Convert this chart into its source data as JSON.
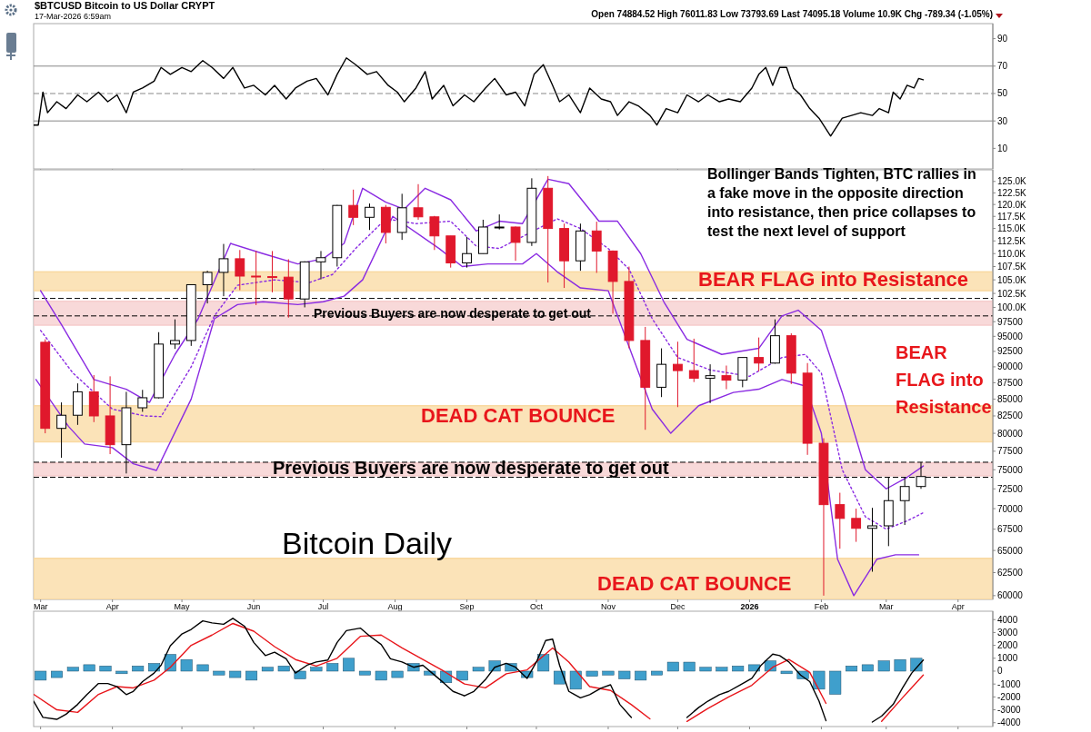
{
  "chart_data": [
    {
      "type": "line",
      "title": "$BTCUSD Bitcoin to US Dollar CRYPT",
      "subtitle": "17-Mar-2026 6:59am",
      "annotations": [
        "Open 74884.52 High 76011.83 Low 73793.69 Last 74095.18 Volume 10.9K Chg -789.34 (-1.05%)"
      ],
      "xlim": [
        "2025-02-26",
        "2026-04-16"
      ],
      "ylim": [
        -5,
        101
      ],
      "yticks": [
        10,
        30,
        50,
        70,
        90
      ],
      "tick_labels": "y",
      "xticks": [
        {
          "value": "2025-03-01",
          "label": null
        },
        {
          "value": "2025-04-01",
          "label": null
        },
        {
          "value": "2025-05-01",
          "label": null
        },
        {
          "value": "2025-06-01",
          "label": null
        },
        {
          "value": "2025-07-01",
          "label": null
        },
        {
          "value": "2025-08-01",
          "label": null
        },
        {
          "value": "2025-09-01",
          "label": null
        },
        {
          "value": "2025-10-01",
          "label": null
        },
        {
          "value": "2025-11-01",
          "label": null
        },
        {
          "value": "2025-12-01",
          "label": null
        },
        {
          "value": "2026-01-01",
          "label": null
        },
        {
          "value": "2026-02-01",
          "label": null
        },
        {
          "value": "2026-03-01",
          "label": null
        },
        {
          "value": "2026-04-01",
          "label": null
        }
      ],
      "ref_lines": [
        {
          "axis": "y",
          "value": 70,
          "color": "#888888"
        },
        {
          "axis": "y",
          "value": 50,
          "color": "#888888",
          "line_style": "dashed"
        },
        {
          "axis": "y",
          "value": 30,
          "color": "#888888"
        }
      ],
      "series": [
        {
          "color": "#000000",
          "x": [
            "2025-02-26",
            "2025-02-28",
            "2025-03-02",
            "2025-03-04",
            "2025-03-08",
            "2025-03-12",
            "2025-03-17",
            "2025-03-21",
            "2025-03-26",
            "2025-03-30",
            "2025-04-03",
            "2025-04-07",
            "2025-04-10",
            "2025-04-14",
            "2025-04-19",
            "2025-04-22",
            "2025-04-26",
            "2025-05-01",
            "2025-05-05",
            "2025-05-10",
            "2025-05-14",
            "2025-05-19",
            "2025-05-23",
            "2025-05-28",
            "2025-06-01",
            "2025-06-06",
            "2025-06-10",
            "2025-06-15",
            "2025-06-19",
            "2025-06-24",
            "2025-06-28",
            "2025-07-03",
            "2025-07-07",
            "2025-07-11",
            "2025-07-15",
            "2025-07-20",
            "2025-07-24",
            "2025-07-29",
            "2025-08-02",
            "2025-08-05",
            "2025-08-10",
            "2025-08-14",
            "2025-08-17",
            "2025-08-22",
            "2025-08-26",
            "2025-08-31",
            "2025-09-04",
            "2025-09-09",
            "2025-09-13",
            "2025-09-18",
            "2025-09-22",
            "2025-09-26",
            "2025-09-30",
            "2025-10-04",
            "2025-10-08",
            "2025-10-11",
            "2025-10-15",
            "2025-10-20",
            "2025-10-24",
            "2025-10-29",
            "2025-11-02",
            "2025-11-05",
            "2025-11-10",
            "2025-11-14",
            "2025-11-19",
            "2025-11-22",
            "2025-11-26",
            "2025-12-01",
            "2025-12-05",
            "2025-12-10",
            "2025-12-14",
            "2025-12-19",
            "2025-12-23",
            "2025-12-28",
            "2026-01-02",
            "2026-01-05",
            "2026-01-08",
            "2026-01-11",
            "2026-01-14",
            "2026-01-17",
            "2026-01-20",
            "2026-01-23",
            "2026-01-27",
            "2026-01-31",
            "2026-02-05",
            "2026-02-10",
            "2026-02-14",
            "2026-02-18",
            "2026-02-23",
            "2026-02-26",
            "2026-03-02",
            "2026-03-04",
            "2026-03-07",
            "2026-03-10",
            "2026-03-13",
            "2026-03-15",
            "2026-03-17"
          ],
          "values": [
            27,
            27,
            51,
            36,
            44,
            39,
            49,
            44,
            51,
            44,
            49,
            36,
            51,
            54,
            59,
            69,
            64,
            69,
            66,
            74,
            69,
            61,
            69,
            54,
            56,
            49,
            56,
            46,
            54,
            59,
            61,
            49,
            64,
            76,
            71,
            64,
            66,
            56,
            51,
            44,
            54,
            66,
            46,
            56,
            41,
            49,
            44,
            54,
            61,
            49,
            51,
            41,
            64,
            71,
            56,
            44,
            49,
            36,
            54,
            46,
            44,
            34,
            44,
            41,
            34,
            27,
            39,
            36,
            49,
            44,
            49,
            44,
            46,
            44,
            54,
            64,
            69,
            56,
            69,
            69,
            54,
            49,
            39,
            32,
            19,
            32,
            34,
            36,
            34,
            39,
            36,
            51,
            46,
            56,
            54,
            61,
            60
          ]
        }
      ]
    },
    {
      "type": "candlestick",
      "title": "Bitcoin Daily",
      "log": true,
      "xlim": [
        "2025-02-26",
        "2026-04-16"
      ],
      "ylim": [
        59600,
        127600
      ],
      "xticks": [
        {
          "value": "2025-03-01",
          "label": "Mar"
        },
        {
          "value": "2025-04-01",
          "label": "Apr"
        },
        {
          "value": "2025-05-01",
          "label": "May"
        },
        {
          "value": "2025-06-01",
          "label": "Jun"
        },
        {
          "value": "2025-07-01",
          "label": "Jul"
        },
        {
          "value": "2025-08-01",
          "label": "Aug"
        },
        {
          "value": "2025-09-01",
          "label": "Sep"
        },
        {
          "value": "2025-10-01",
          "label": "Oct"
        },
        {
          "value": "2025-11-01",
          "label": "Nov"
        },
        {
          "value": "2025-12-01",
          "label": "Dec"
        },
        {
          "value": "2026-01-01",
          "label": "2026"
        },
        {
          "value": "2026-02-01",
          "label": "Feb"
        },
        {
          "value": "2026-03-01",
          "label": "Mar"
        },
        {
          "value": "2026-04-01",
          "label": "Apr"
        }
      ],
      "yticks": [
        {
          "value": 125000,
          "label": "125.0K"
        },
        {
          "value": 122500,
          "label": "122.5K"
        },
        {
          "value": 120000,
          "label": "120.0K"
        },
        {
          "value": 117500,
          "label": "117.5K"
        },
        {
          "value": 115000,
          "label": "115.0K"
        },
        {
          "value": 112500,
          "label": "112.5K"
        },
        {
          "value": 110000,
          "label": "110.0K"
        },
        {
          "value": 107500,
          "label": "107.5K"
        },
        {
          "value": 105000,
          "label": "105.0K"
        },
        {
          "value": 102500,
          "label": "102.5K"
        },
        {
          "value": 100000,
          "label": "100.0K"
        },
        97500,
        95000,
        92500,
        90000,
        87500,
        85000,
        82500,
        80000,
        77500,
        75000,
        72500,
        70000,
        67500,
        65000,
        62500,
        60000
      ],
      "bands": [
        {
          "axis": "y",
          "from": 96900,
          "to": 101100,
          "color": "#f6cccc",
          "label": "Previous Buyers are now desperate to get out"
        },
        {
          "axis": "y",
          "from": 74200,
          "to": 75900,
          "color": "#f6cccc",
          "label": "Previous Buyers are now desperate to get out"
        },
        {
          "axis": "y",
          "from": 103000,
          "to": 106500,
          "color": "#f9d9a0"
        },
        {
          "axis": "y",
          "from": 78800,
          "to": 84000,
          "color": "#f9d9a0"
        },
        {
          "axis": "y",
          "from": 59600,
          "to": 64100,
          "color": "#f9d9a0"
        }
      ],
      "ref_lines": [
        {
          "axis": "y",
          "value": 101600,
          "color": "#000000",
          "line_style": "dashed"
        },
        {
          "axis": "y",
          "value": 98500,
          "color": "#000000",
          "line_style": "dashed"
        },
        {
          "axis": "y",
          "value": 76000,
          "color": "#000000",
          "line_style": "dashed"
        },
        {
          "axis": "y",
          "value": 74000,
          "color": "#000000",
          "line_style": "dashed"
        }
      ],
      "annotations": [
        "Bollinger Bands Tighten, BTC rallies in a fake move in the opposite direction into resistance, then price collapses to test the next level of support",
        "BEAR FLAG into Resistance",
        "BEAR FLAG into Resistance",
        "DEAD CAT BOUNCE",
        "DEAD CAT BOUNCE"
      ],
      "x": [
        "2025-03-03",
        "2025-03-10",
        "2025-03-17",
        "2025-03-24",
        "2025-03-31",
        "2025-04-07",
        "2025-04-14",
        "2025-04-21",
        "2025-04-28",
        "2025-05-05",
        "2025-05-12",
        "2025-05-19",
        "2025-05-26",
        "2025-06-02",
        "2025-06-09",
        "2025-06-16",
        "2025-06-23",
        "2025-06-30",
        "2025-07-07",
        "2025-07-14",
        "2025-07-21",
        "2025-07-28",
        "2025-08-04",
        "2025-08-11",
        "2025-08-18",
        "2025-08-25",
        "2025-09-01",
        "2025-09-08",
        "2025-09-15",
        "2025-09-22",
        "2025-09-29",
        "2025-10-06",
        "2025-10-13",
        "2025-10-20",
        "2025-10-27",
        "2025-11-03",
        "2025-11-10",
        "2025-11-17",
        "2025-11-24",
        "2025-12-01",
        "2025-12-08",
        "2025-12-15",
        "2025-12-22",
        "2025-12-29",
        "2026-01-05",
        "2026-01-12",
        "2026-01-19",
        "2026-01-26",
        "2026-02-02",
        "2026-02-09",
        "2026-02-16",
        "2026-02-23",
        "2026-03-02",
        "2026-03-09",
        "2026-03-16"
      ],
      "ohlc": [
        [
          94000,
          94500,
          80000,
          80700
        ],
        [
          80700,
          84500,
          76600,
          82600
        ],
        [
          82600,
          87400,
          81200,
          86100
        ],
        [
          86100,
          88700,
          81600,
          82500
        ],
        [
          82500,
          88500,
          77100,
          78400
        ],
        [
          78400,
          86100,
          74500,
          83700
        ],
        [
          83700,
          86400,
          83100,
          85200
        ],
        [
          85200,
          95700,
          85100,
          93700
        ],
        [
          93700,
          97900,
          92900,
          94300
        ],
        [
          94300,
          104100,
          93400,
          104100
        ],
        [
          104100,
          106700,
          100700,
          106400
        ],
        [
          106400,
          111900,
          102000,
          109000
        ],
        [
          109000,
          110700,
          103100,
          105700
        ],
        [
          105700,
          110500,
          100400,
          105600
        ],
        [
          105600,
          110500,
          102700,
          105500
        ],
        [
          105500,
          108900,
          98200,
          101500
        ],
        [
          101500,
          108500,
          100000,
          108400
        ],
        [
          108400,
          110500,
          105100,
          109200
        ],
        [
          109200,
          119900,
          107500,
          119800
        ],
        [
          119800,
          123200,
          115700,
          117300
        ],
        [
          117300,
          120200,
          114700,
          119400
        ],
        [
          119400,
          119900,
          112000,
          114200
        ],
        [
          114200,
          122300,
          112700,
          119300
        ],
        [
          119300,
          124400,
          116800,
          117400
        ],
        [
          117400,
          117600,
          110700,
          113500
        ],
        [
          113500,
          113500,
          107300,
          108200
        ],
        [
          108200,
          113300,
          107300,
          110000
        ],
        [
          110000,
          116800,
          110000,
          115300
        ],
        [
          115300,
          117900,
          114800,
          115300
        ],
        [
          115300,
          115400,
          108600,
          112200
        ],
        [
          112200,
          125700,
          111500,
          123500
        ],
        [
          123500,
          126200,
          104500,
          115000
        ],
        [
          115000,
          116000,
          103500,
          108600
        ],
        [
          108600,
          116000,
          106700,
          114500
        ],
        [
          114500,
          116400,
          106300,
          110500
        ],
        [
          110500,
          110600,
          98900,
          104700
        ],
        [
          104700,
          107500,
          93000,
          94300
        ],
        [
          94300,
          96600,
          80500,
          86800
        ],
        [
          86800,
          93000,
          85300,
          90400
        ],
        [
          90400,
          94100,
          83800,
          89400
        ],
        [
          89400,
          94600,
          87600,
          88200
        ],
        [
          88200,
          90400,
          84400,
          88600
        ],
        [
          88600,
          90200,
          86500,
          87900
        ],
        [
          87900,
          91500,
          86800,
          91500
        ],
        [
          91500,
          94800,
          89300,
          90600
        ],
        [
          90600,
          97900,
          90500,
          95100
        ],
        [
          95100,
          95500,
          87300,
          89000
        ],
        [
          89000,
          90600,
          77000,
          78600
        ],
        [
          78600,
          79300,
          60000,
          70500
        ],
        [
          70500,
          72000,
          65200,
          68800
        ],
        [
          68800,
          70000,
          66000,
          67600
        ],
        [
          67600,
          70100,
          62600,
          67900
        ],
        [
          67900,
          74000,
          65500,
          71000
        ],
        [
          71000,
          74000,
          68000,
          72800
        ],
        [
          72800,
          76000,
          72500,
          74100
        ]
      ],
      "series": [
        {
          "type": "line",
          "color": "#8a2be2",
          "x": [
            "2025-03-01",
            "2025-03-10",
            "2025-03-24",
            "2025-04-07",
            "2025-04-17",
            "2025-04-28",
            "2025-05-08",
            "2025-05-22",
            "2025-06-05",
            "2025-06-20",
            "2025-07-01",
            "2025-07-10",
            "2025-07-18",
            "2025-07-28",
            "2025-08-05",
            "2025-08-14",
            "2025-08-25",
            "2025-09-05",
            "2025-09-15",
            "2025-09-25",
            "2025-10-06",
            "2025-10-15",
            "2025-10-28",
            "2025-11-05",
            "2025-11-15",
            "2025-11-25",
            "2025-12-05",
            "2025-12-20",
            "2026-01-05",
            "2026-01-15",
            "2026-01-22",
            "2026-02-01",
            "2026-02-10",
            "2026-02-20",
            "2026-03-01",
            "2026-03-10",
            "2026-03-17"
          ],
          "values": [
            103000,
            97000,
            88000,
            86500,
            84500,
            92000,
            98000,
            112000,
            110000,
            108000,
            109000,
            112000,
            123500,
            120500,
            119000,
            123500,
            121000,
            114500,
            116500,
            116000,
            125500,
            124500,
            116500,
            116500,
            110000,
            101000,
            94500,
            92000,
            93000,
            98500,
            99500,
            96000,
            86000,
            75000,
            72500,
            74000,
            75500
          ]
        },
        {
          "type": "line",
          "color": "#8a2be2",
          "x": [
            "2025-02-27",
            "2025-03-13",
            "2025-03-20",
            "2025-04-01",
            "2025-04-10",
            "2025-04-20",
            "2025-05-05",
            "2025-05-15",
            "2025-05-25",
            "2025-06-05",
            "2025-06-20",
            "2025-07-01",
            "2025-07-10",
            "2025-07-18",
            "2025-07-31",
            "2025-08-20",
            "2025-08-30",
            "2025-09-10",
            "2025-09-25",
            "2025-10-01",
            "2025-10-10",
            "2025-10-20",
            "2025-11-01",
            "2025-11-20",
            "2025-11-28",
            "2025-12-10",
            "2025-12-25",
            "2026-01-05",
            "2026-01-15",
            "2026-01-25",
            "2026-02-01",
            "2026-02-08",
            "2026-02-15",
            "2026-02-25",
            "2026-03-05",
            "2026-03-15"
          ],
          "values": [
            88000,
            81000,
            78500,
            78000,
            75800,
            74900,
            85000,
            98000,
            100500,
            101000,
            100500,
            101000,
            102000,
            105000,
            117500,
            111000,
            107500,
            108000,
            108000,
            110000,
            106500,
            103500,
            103000,
            83500,
            80000,
            84000,
            86000,
            86500,
            88000,
            87000,
            80000,
            64000,
            60000,
            64000,
            64500,
            64500
          ]
        },
        {
          "type": "line",
          "color": "#8a2be2",
          "line_style": "dotted",
          "x": [
            "2025-03-01",
            "2025-03-15",
            "2025-04-01",
            "2025-04-15",
            "2025-04-22",
            "2025-05-05",
            "2025-05-15",
            "2025-05-25",
            "2025-06-10",
            "2025-06-25",
            "2025-07-05",
            "2025-07-15",
            "2025-07-28",
            "2025-08-10",
            "2025-08-25",
            "2025-09-05",
            "2025-09-15",
            "2025-10-10",
            "2025-10-20",
            "2025-11-01",
            "2025-11-10",
            "2025-11-20",
            "2025-12-01",
            "2025-12-15",
            "2026-01-01",
            "2026-01-15",
            "2026-01-25",
            "2026-02-01",
            "2026-02-10",
            "2026-02-20",
            "2026-03-01",
            "2026-03-10",
            "2026-03-17"
          ],
          "values": [
            96000,
            89000,
            83500,
            82500,
            82400,
            90000,
            98500,
            104000,
            105000,
            104500,
            106000,
            111000,
            117000,
            116000,
            116500,
            111500,
            111000,
            117000,
            115000,
            111000,
            107000,
            98000,
            91500,
            89500,
            88500,
            91500,
            92000,
            89000,
            75000,
            69000,
            67500,
            68500,
            69500
          ]
        }
      ]
    },
    {
      "type": "line",
      "xlim": [
        "2025-02-26",
        "2026-04-16"
      ],
      "ylim": [
        -4300,
        4650
      ],
      "yticks": [
        4000,
        3000,
        2000,
        1000,
        0,
        -1000,
        -2000,
        -3000,
        -4000
      ],
      "tick_labels": "y",
      "xticks": [
        {
          "value": "2025-03-01",
          "label": null
        },
        {
          "value": "2025-04-01",
          "label": null
        },
        {
          "value": "2025-05-01",
          "label": null
        },
        {
          "value": "2025-06-01",
          "label": null
        },
        {
          "value": "2025-07-01",
          "label": null
        },
        {
          "value": "2025-08-01",
          "label": null
        },
        {
          "value": "2025-09-01",
          "label": null
        },
        {
          "value": "2025-10-01",
          "label": null
        },
        {
          "value": "2025-11-01",
          "label": null
        },
        {
          "value": "2025-12-01",
          "label": null
        },
        {
          "value": "2026-01-01",
          "label": null
        },
        {
          "value": "2026-02-01",
          "label": null
        },
        {
          "value": "2026-03-01",
          "label": null
        },
        {
          "value": "2026-04-01",
          "label": null
        }
      ],
      "series": [
        {
          "type": "bar",
          "color": "#3f9fcc",
          "x": [
            "2025-03-01",
            "2025-03-08",
            "2025-03-15",
            "2025-03-22",
            "2025-03-29",
            "2025-04-05",
            "2025-04-12",
            "2025-04-19",
            "2025-04-26",
            "2025-05-03",
            "2025-05-10",
            "2025-05-17",
            "2025-05-24",
            "2025-05-31",
            "2025-06-07",
            "2025-06-14",
            "2025-06-21",
            "2025-06-28",
            "2025-07-05",
            "2025-07-12",
            "2025-07-19",
            "2025-07-26",
            "2025-08-02",
            "2025-08-09",
            "2025-08-16",
            "2025-08-23",
            "2025-08-30",
            "2025-09-06",
            "2025-09-13",
            "2025-09-20",
            "2025-09-27",
            "2025-10-04",
            "2025-10-11",
            "2025-10-18",
            "2025-10-25",
            "2025-11-01",
            "2025-11-08",
            "2025-11-15",
            "2025-11-22",
            "2025-11-29",
            "2025-12-06",
            "2025-12-13",
            "2025-12-20",
            "2025-12-27",
            "2026-01-03",
            "2026-01-10",
            "2026-01-17",
            "2026-01-24",
            "2026-01-31",
            "2026-02-07",
            "2026-02-14",
            "2026-02-21",
            "2026-02-28",
            "2026-03-07",
            "2026-03-14"
          ],
          "values": [
            -700,
            -500,
            300,
            500,
            400,
            -200,
            400,
            600,
            1300,
            900,
            500,
            -300,
            -500,
            -700,
            300,
            400,
            -600,
            300,
            600,
            1000,
            -300,
            -700,
            -500,
            600,
            -300,
            -900,
            -700,
            300,
            800,
            600,
            -500,
            1300,
            -1000,
            -1400,
            -400,
            -300,
            -600,
            -700,
            -300,
            700,
            700,
            300,
            300,
            400,
            500,
            800,
            -200,
            -600,
            -1400,
            -1800,
            400,
            500,
            800,
            900,
            1000
          ]
        },
        {
          "color": "#e8161b",
          "x": [
            "2025-02-26",
            "2025-03-08",
            "2025-03-17",
            "2025-03-26",
            "2025-04-03",
            "2025-04-10",
            "2025-04-19",
            "2025-04-26",
            "2025-05-05",
            "2025-05-14",
            "2025-05-23",
            "2025-06-01",
            "2025-06-10",
            "2025-06-19",
            "2025-06-28",
            "2025-07-07",
            "2025-07-17",
            "2025-07-26",
            "2025-08-04",
            "2025-08-13",
            "2025-08-22",
            "2025-08-31",
            "2025-09-09",
            "2025-09-18",
            "2025-09-27",
            "2025-10-08",
            "2025-10-15",
            "2025-10-24",
            "2025-11-02",
            "2025-11-11",
            "2025-11-19",
            "2025-11-24",
            "2025-12-05",
            "2025-12-14",
            "2025-12-23",
            "2026-01-02",
            "2026-01-11",
            "2026-01-18",
            "2026-01-27",
            "2026-02-03",
            "2026-02-10",
            "2026-02-27",
            "2026-03-08",
            "2026-03-17"
          ],
          "values": [
            -1800,
            -3000,
            -3200,
            -1800,
            -1200,
            -1300,
            -700,
            300,
            2000,
            2800,
            3700,
            3100,
            1900,
            900,
            400,
            1000,
            2700,
            2800,
            1800,
            900,
            0,
            -1000,
            -1300,
            -200,
            100,
            1800,
            700,
            -1200,
            -1500,
            -2600,
            -3700,
            null,
            -3900,
            -2900,
            -2000,
            -1100,
            300,
            900,
            -100,
            -2500,
            null,
            -3900,
            -2070,
            -300
          ]
        },
        {
          "color": "#000000",
          "x": [
            "2025-02-26",
            "2025-03-02",
            "2025-03-08",
            "2025-03-12",
            "2025-03-17",
            "2025-03-21",
            "2025-03-26",
            "2025-03-30",
            "2025-04-03",
            "2025-04-07",
            "2025-04-10",
            "2025-04-14",
            "2025-04-19",
            "2025-04-22",
            "2025-04-26",
            "2025-05-01",
            "2025-05-05",
            "2025-05-10",
            "2025-05-14",
            "2025-05-19",
            "2025-05-23",
            "2025-05-28",
            "2025-06-01",
            "2025-06-06",
            "2025-06-10",
            "2025-06-15",
            "2025-06-19",
            "2025-06-24",
            "2025-06-28",
            "2025-07-03",
            "2025-07-07",
            "2025-07-11",
            "2025-07-17",
            "2025-07-21",
            "2025-07-26",
            "2025-07-30",
            "2025-08-04",
            "2025-08-09",
            "2025-08-13",
            "2025-08-17",
            "2025-08-22",
            "2025-08-26",
            "2025-08-31",
            "2025-09-04",
            "2025-09-09",
            "2025-09-13",
            "2025-09-18",
            "2025-09-22",
            "2025-09-27",
            "2025-10-01",
            "2025-10-05",
            "2025-10-08",
            "2025-10-11",
            "2025-10-15",
            "2025-10-20",
            "2025-10-24",
            "2025-10-29",
            "2025-11-02",
            "2025-11-06",
            "2025-11-11",
            "2025-11-15",
            "2025-12-05",
            "2025-12-10",
            "2025-12-14",
            "2025-12-19",
            "2025-12-23",
            "2025-12-28",
            "2026-01-02",
            "2026-01-06",
            "2026-01-11",
            "2026-01-14",
            "2026-01-18",
            "2026-01-23",
            "2026-01-27",
            "2026-01-31",
            "2026-02-03",
            "2026-02-07",
            "2026-02-16",
            "2026-02-23",
            "2026-02-27",
            "2026-03-04",
            "2026-03-08",
            "2026-03-12",
            "2026-03-17"
          ],
          "values": [
            -2330,
            -3590,
            -3740,
            -3340,
            -2580,
            -1820,
            -960,
            -960,
            -1210,
            -1820,
            -1570,
            -810,
            -150,
            460,
            1970,
            2880,
            3240,
            3900,
            3740,
            3640,
            4100,
            3490,
            2230,
            1210,
            1470,
            960,
            -150,
            460,
            710,
            860,
            2230,
            3140,
            3340,
            2730,
            2070,
            960,
            710,
            300,
            460,
            -150,
            -910,
            -1570,
            -1920,
            -1570,
            -660,
            300,
            610,
            300,
            -560,
            710,
            2380,
            2480,
            460,
            -1570,
            -2070,
            -1820,
            -1320,
            -1060,
            -2580,
            -3590,
            null,
            -3590,
            -2830,
            -2330,
            -1820,
            -1570,
            -1060,
            -560,
            460,
            1320,
            1210,
            710,
            -300,
            -810,
            -2330,
            -3850,
            null,
            null,
            -3950,
            -3490,
            -2580,
            -1320,
            -150,
            860
          ]
        }
      ]
    }
  ]
}
